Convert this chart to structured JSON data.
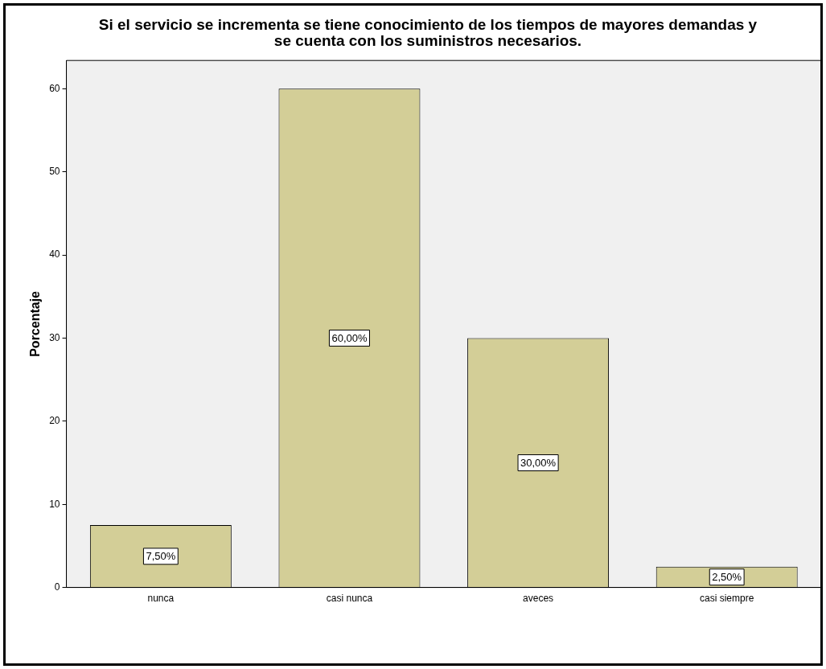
{
  "chart_data": {
    "type": "bar",
    "title": "Si el servicio se incrementa se tiene conocimiento de los tiempos de mayores demandas y se cuenta con los suministros necesarios.",
    "ylabel": "Porcentaje",
    "categories": [
      "nunca",
      "casi nunca",
      "aveces",
      "casi siempre"
    ],
    "values": [
      7.5,
      60,
      30,
      2.5
    ],
    "value_labels": [
      "7,50%",
      "60,00%",
      "30,00%",
      "2,50%"
    ],
    "color": "#d3ce97",
    "ylim": [
      0,
      63.4
    ],
    "yticks": [
      0,
      10,
      20,
      30,
      40,
      50,
      60
    ],
    "grid": false,
    "legend": false
  }
}
